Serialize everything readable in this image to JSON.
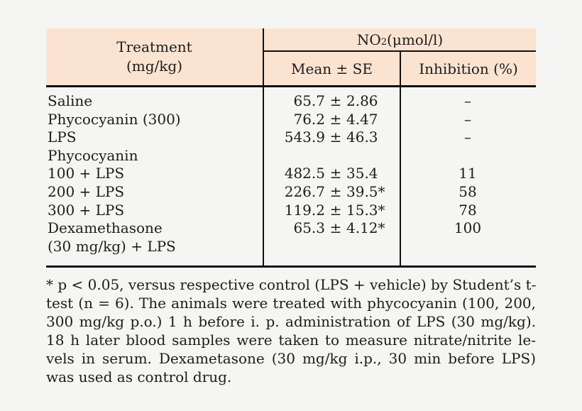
{
  "colors": {
    "page_bg": "#f5f5f4",
    "header_bg": "#fbe3d1",
    "rule": "#111111",
    "text": "#1c1c1c"
  },
  "table": {
    "header": {
      "treatment_line1": "Treatment",
      "treatment_line2": "(mg/kg)",
      "no2_prefix": "NO",
      "no2_sub": "2",
      "no2_suffix": " (μmol/l)",
      "mean_se": "Mean ± SE",
      "inhibition": "Inhibition (%)"
    },
    "rows": [
      {
        "treatment": "Saline",
        "mean": "65.7",
        "pm": "±",
        "se": "2.86",
        "inhibition": "–"
      },
      {
        "treatment": "Phycocyanin (300)",
        "mean": "76.2",
        "pm": "±",
        "se": "4.47",
        "inhibition": "–"
      },
      {
        "treatment": "LPS",
        "mean": "543.9",
        "pm": "±",
        "se": "46.3",
        "inhibition": "–"
      },
      {
        "treatment": "Phycocyanin",
        "mean": "",
        "pm": "",
        "se": "",
        "inhibition": ""
      },
      {
        "treatment": "100 + LPS",
        "mean": "482.5",
        "pm": "±",
        "se": "35.4",
        "inhibition": "11"
      },
      {
        "treatment": "200 + LPS",
        "mean": "226.7",
        "pm": "±",
        "se": "39.5*",
        "inhibition": "58"
      },
      {
        "treatment": "300 + LPS",
        "mean": "119.2",
        "pm": "±",
        "se": "15.3*",
        "inhibition": "78"
      },
      {
        "treatment": "Dexamethasone",
        "mean": "65.3",
        "pm": "±",
        "se": "4.12*",
        "inhibition": "100"
      },
      {
        "treatment": "(30 mg/kg) + LPS",
        "mean": "",
        "pm": "",
        "se": "",
        "inhibition": ""
      }
    ]
  },
  "footnote": {
    "lines": [
      "* p < 0.05, versus respective control (LPS + vehicle) by Student’s t-",
      "test (n = 6). The animals were treated with phycocyanin (100, 200,",
      "300 mg/kg p.o.) 1 h before i. p. administration of LPS (30 mg/kg).",
      "18 h later blood samples were taken to measure nitrate/nitrite le-",
      "vels in serum. Dexametasone (30 mg/kg i.p., 30 min before LPS)",
      "was used as control drug."
    ]
  }
}
